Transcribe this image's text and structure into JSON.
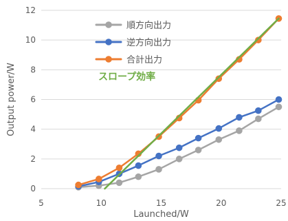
{
  "chart_data": {
    "type": "line",
    "title": "",
    "xlabel": "Launched/W",
    "ylabel": "Output power/W",
    "xlim": [
      5,
      25
    ],
    "ylim": [
      0,
      12
    ],
    "x_ticks": [
      5,
      10,
      15,
      20,
      25
    ],
    "y_ticks": [
      0,
      2,
      4,
      6,
      8,
      10,
      12
    ],
    "grid": "horizontal",
    "legend_position": "top-center",
    "series": [
      {
        "name": "順方向出力",
        "color": "#a5a5a5",
        "x": [
          8.1,
          9.8,
          11.5,
          13.1,
          14.8,
          16.5,
          18.1,
          19.8,
          21.5,
          23.1,
          24.8
        ],
        "y": [
          0.1,
          0.2,
          0.4,
          0.8,
          1.3,
          2.0,
          2.6,
          3.3,
          3.9,
          4.7,
          5.5
        ]
      },
      {
        "name": "逆方向出力",
        "color": "#4472c4",
        "x": [
          8.1,
          9.8,
          11.5,
          13.1,
          14.8,
          16.5,
          18.1,
          19.8,
          21.5,
          23.1,
          24.8
        ],
        "y": [
          0.15,
          0.45,
          1.0,
          1.55,
          2.2,
          2.75,
          3.4,
          4.05,
          4.8,
          5.25,
          6.0
        ]
      },
      {
        "name": "合計出力",
        "color": "#ed7d31",
        "x": [
          8.1,
          9.8,
          11.5,
          13.1,
          14.8,
          16.5,
          18.1,
          19.8,
          21.5,
          23.1,
          24.8
        ],
        "y": [
          0.25,
          0.65,
          1.4,
          2.35,
          3.5,
          4.75,
          5.95,
          7.4,
          8.7,
          10.0,
          11.45
        ]
      }
    ],
    "annotation": {
      "text": "スロープ効率",
      "color": "#70ad47",
      "line_x": [
        10.3,
        24.8
      ],
      "line_y": [
        0,
        11.45
      ]
    }
  }
}
